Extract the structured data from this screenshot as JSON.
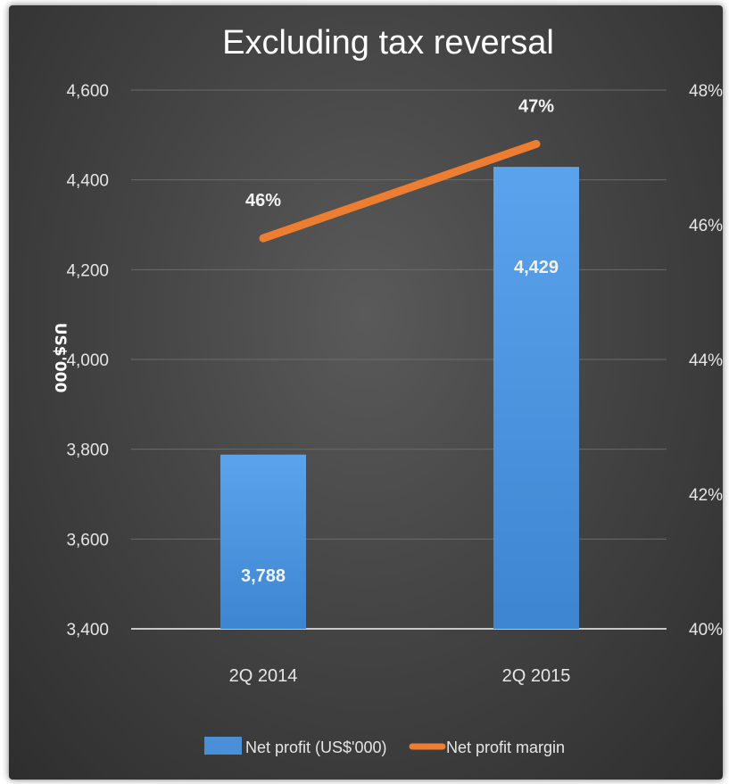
{
  "chart_data": {
    "type": "bar",
    "title": "Excluding tax reversal",
    "ylabel": "US$'000",
    "categories": [
      "2Q 2014",
      "2Q 2015"
    ],
    "ylim": [
      3400,
      4600
    ],
    "yticks": [
      "3,400",
      "3,600",
      "3,800",
      "4,000",
      "4,200",
      "4,400",
      "4,600"
    ],
    "y2lim": [
      40,
      48
    ],
    "y2ticks": [
      "40%",
      "42%",
      "44%",
      "46%",
      "48%"
    ],
    "series": [
      {
        "name": "Net profit (US$'000)",
        "type": "bar",
        "axis": "left",
        "values": [
          3788,
          4429
        ],
        "labels": [
          "3,788",
          "4,429"
        ],
        "color": "#4a90d9"
      },
      {
        "name": "Net profit margin",
        "type": "line",
        "axis": "right",
        "values": [
          45.8,
          47.2
        ],
        "labels": [
          "46%",
          "47%"
        ],
        "color": "#ed7d31"
      }
    ],
    "grid": true,
    "legend": "bottom",
    "background": "#444444"
  }
}
